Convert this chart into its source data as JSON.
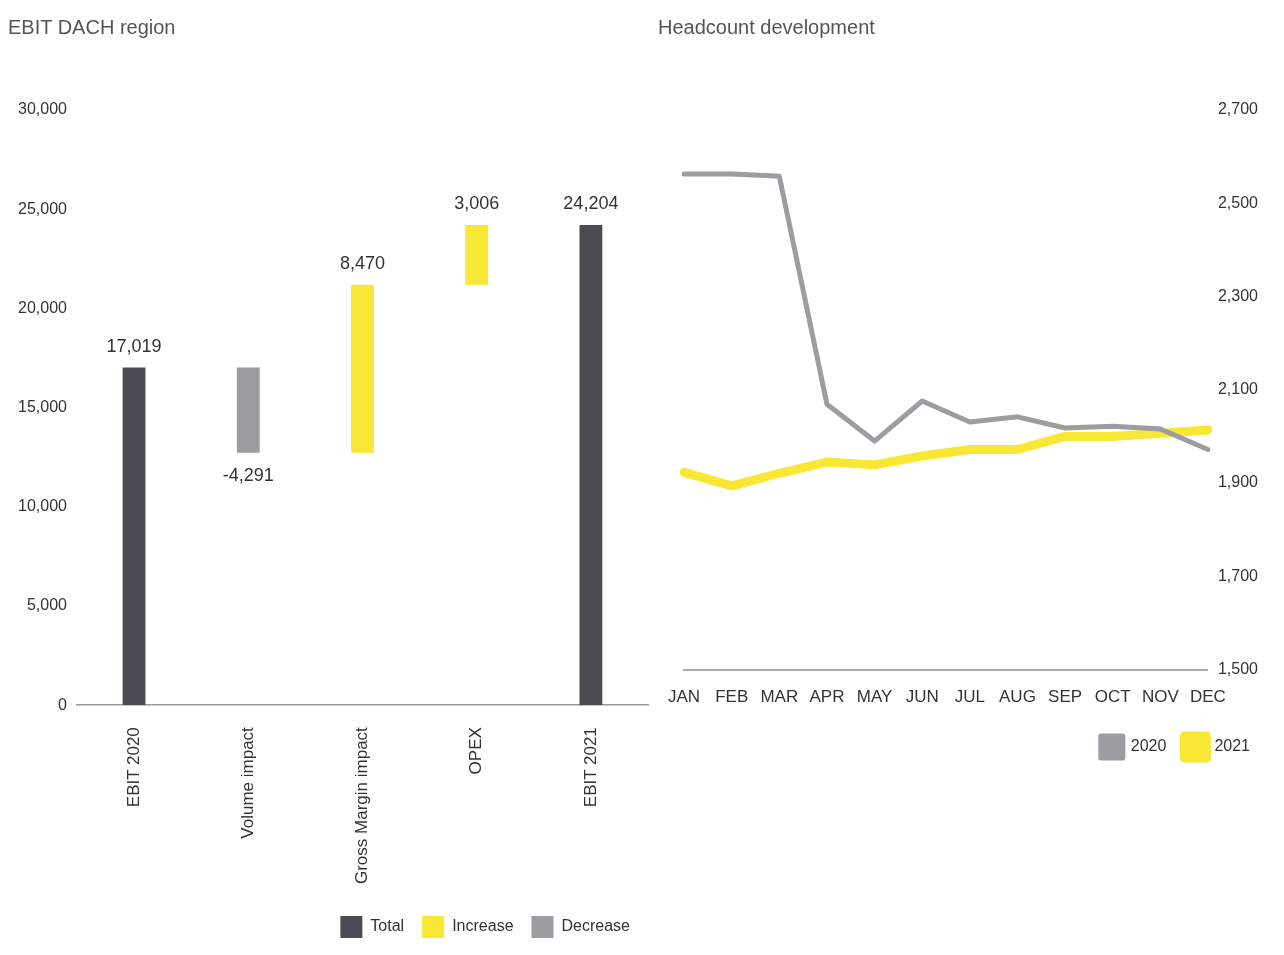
{
  "chart_data": [
    {
      "type": "bar",
      "title": "EBIT DACH region",
      "categories": [
        "EBIT 2020",
        "Volume impact",
        "Gross Margin impact",
        "OPEX",
        "EBIT 2021"
      ],
      "series": [
        {
          "name": "Total",
          "color": "#4c4b53",
          "values": [
            17019,
            null,
            null,
            null,
            24204
          ],
          "base": [
            0,
            null,
            null,
            null,
            0
          ],
          "value_labels": [
            "17,019",
            null,
            null,
            null,
            "24,204"
          ]
        },
        {
          "name": "Increase",
          "color": "#f8e835",
          "values": [
            null,
            null,
            8470,
            3006,
            null
          ],
          "base": [
            null,
            null,
            12728,
            21198,
            null
          ],
          "value_labels": [
            null,
            null,
            "8,470",
            "3,006",
            null
          ]
        },
        {
          "name": "Decrease",
          "color": "#9d9ca1",
          "values": [
            null,
            -4291,
            null,
            null,
            null
          ],
          "base": [
            null,
            17019,
            null,
            null,
            null
          ],
          "value_labels": [
            null,
            "-4,291",
            null,
            null,
            null
          ]
        }
      ],
      "ylim": [
        0,
        30000
      ],
      "yticks": [
        {
          "value": 0,
          "label": "0"
        },
        {
          "value": 5000,
          "label": "5,000"
        },
        {
          "value": 10000,
          "label": "10,000"
        },
        {
          "value": 15000,
          "label": "15,000"
        },
        {
          "value": 20000,
          "label": "20,000"
        },
        {
          "value": 25000,
          "label": "25,000"
        },
        {
          "value": 30000,
          "label": "30,000"
        }
      ],
      "grid": false,
      "legend": "bottom right"
    },
    {
      "type": "line",
      "title": "Headcount development",
      "categories": [
        "JAN",
        "FEB",
        "MAR",
        "APR",
        "MAY",
        "JUN",
        "JUL",
        "AUG",
        "SEP",
        "OCT",
        "NOV",
        "DEC"
      ],
      "series": [
        {
          "name": "2020",
          "color": "#9d9ca1",
          "values": [
            2563,
            2563,
            2558,
            2069,
            1990,
            2076,
            2031,
            2042,
            2018,
            2022,
            2016,
            1972
          ]
        },
        {
          "name": "2021",
          "color": "#f8e835",
          "values": [
            1923,
            1894,
            1921,
            1945,
            1939,
            1958,
            1972,
            1972,
            2000,
            2000,
            2007,
            2014
          ]
        }
      ],
      "ylim": [
        1500,
        2700
      ],
      "yticks": [
        {
          "value": 1500,
          "label": "1,500"
        },
        {
          "value": 1700,
          "label": "1,700"
        },
        {
          "value": 1900,
          "label": "1,900"
        },
        {
          "value": 2100,
          "label": "2,100"
        },
        {
          "value": 2300,
          "label": "2,300"
        },
        {
          "value": 2500,
          "label": "2,500"
        },
        {
          "value": 2700,
          "label": "2,700"
        }
      ],
      "grid": false,
      "legend": "bottom right",
      "marker": "none"
    }
  ]
}
